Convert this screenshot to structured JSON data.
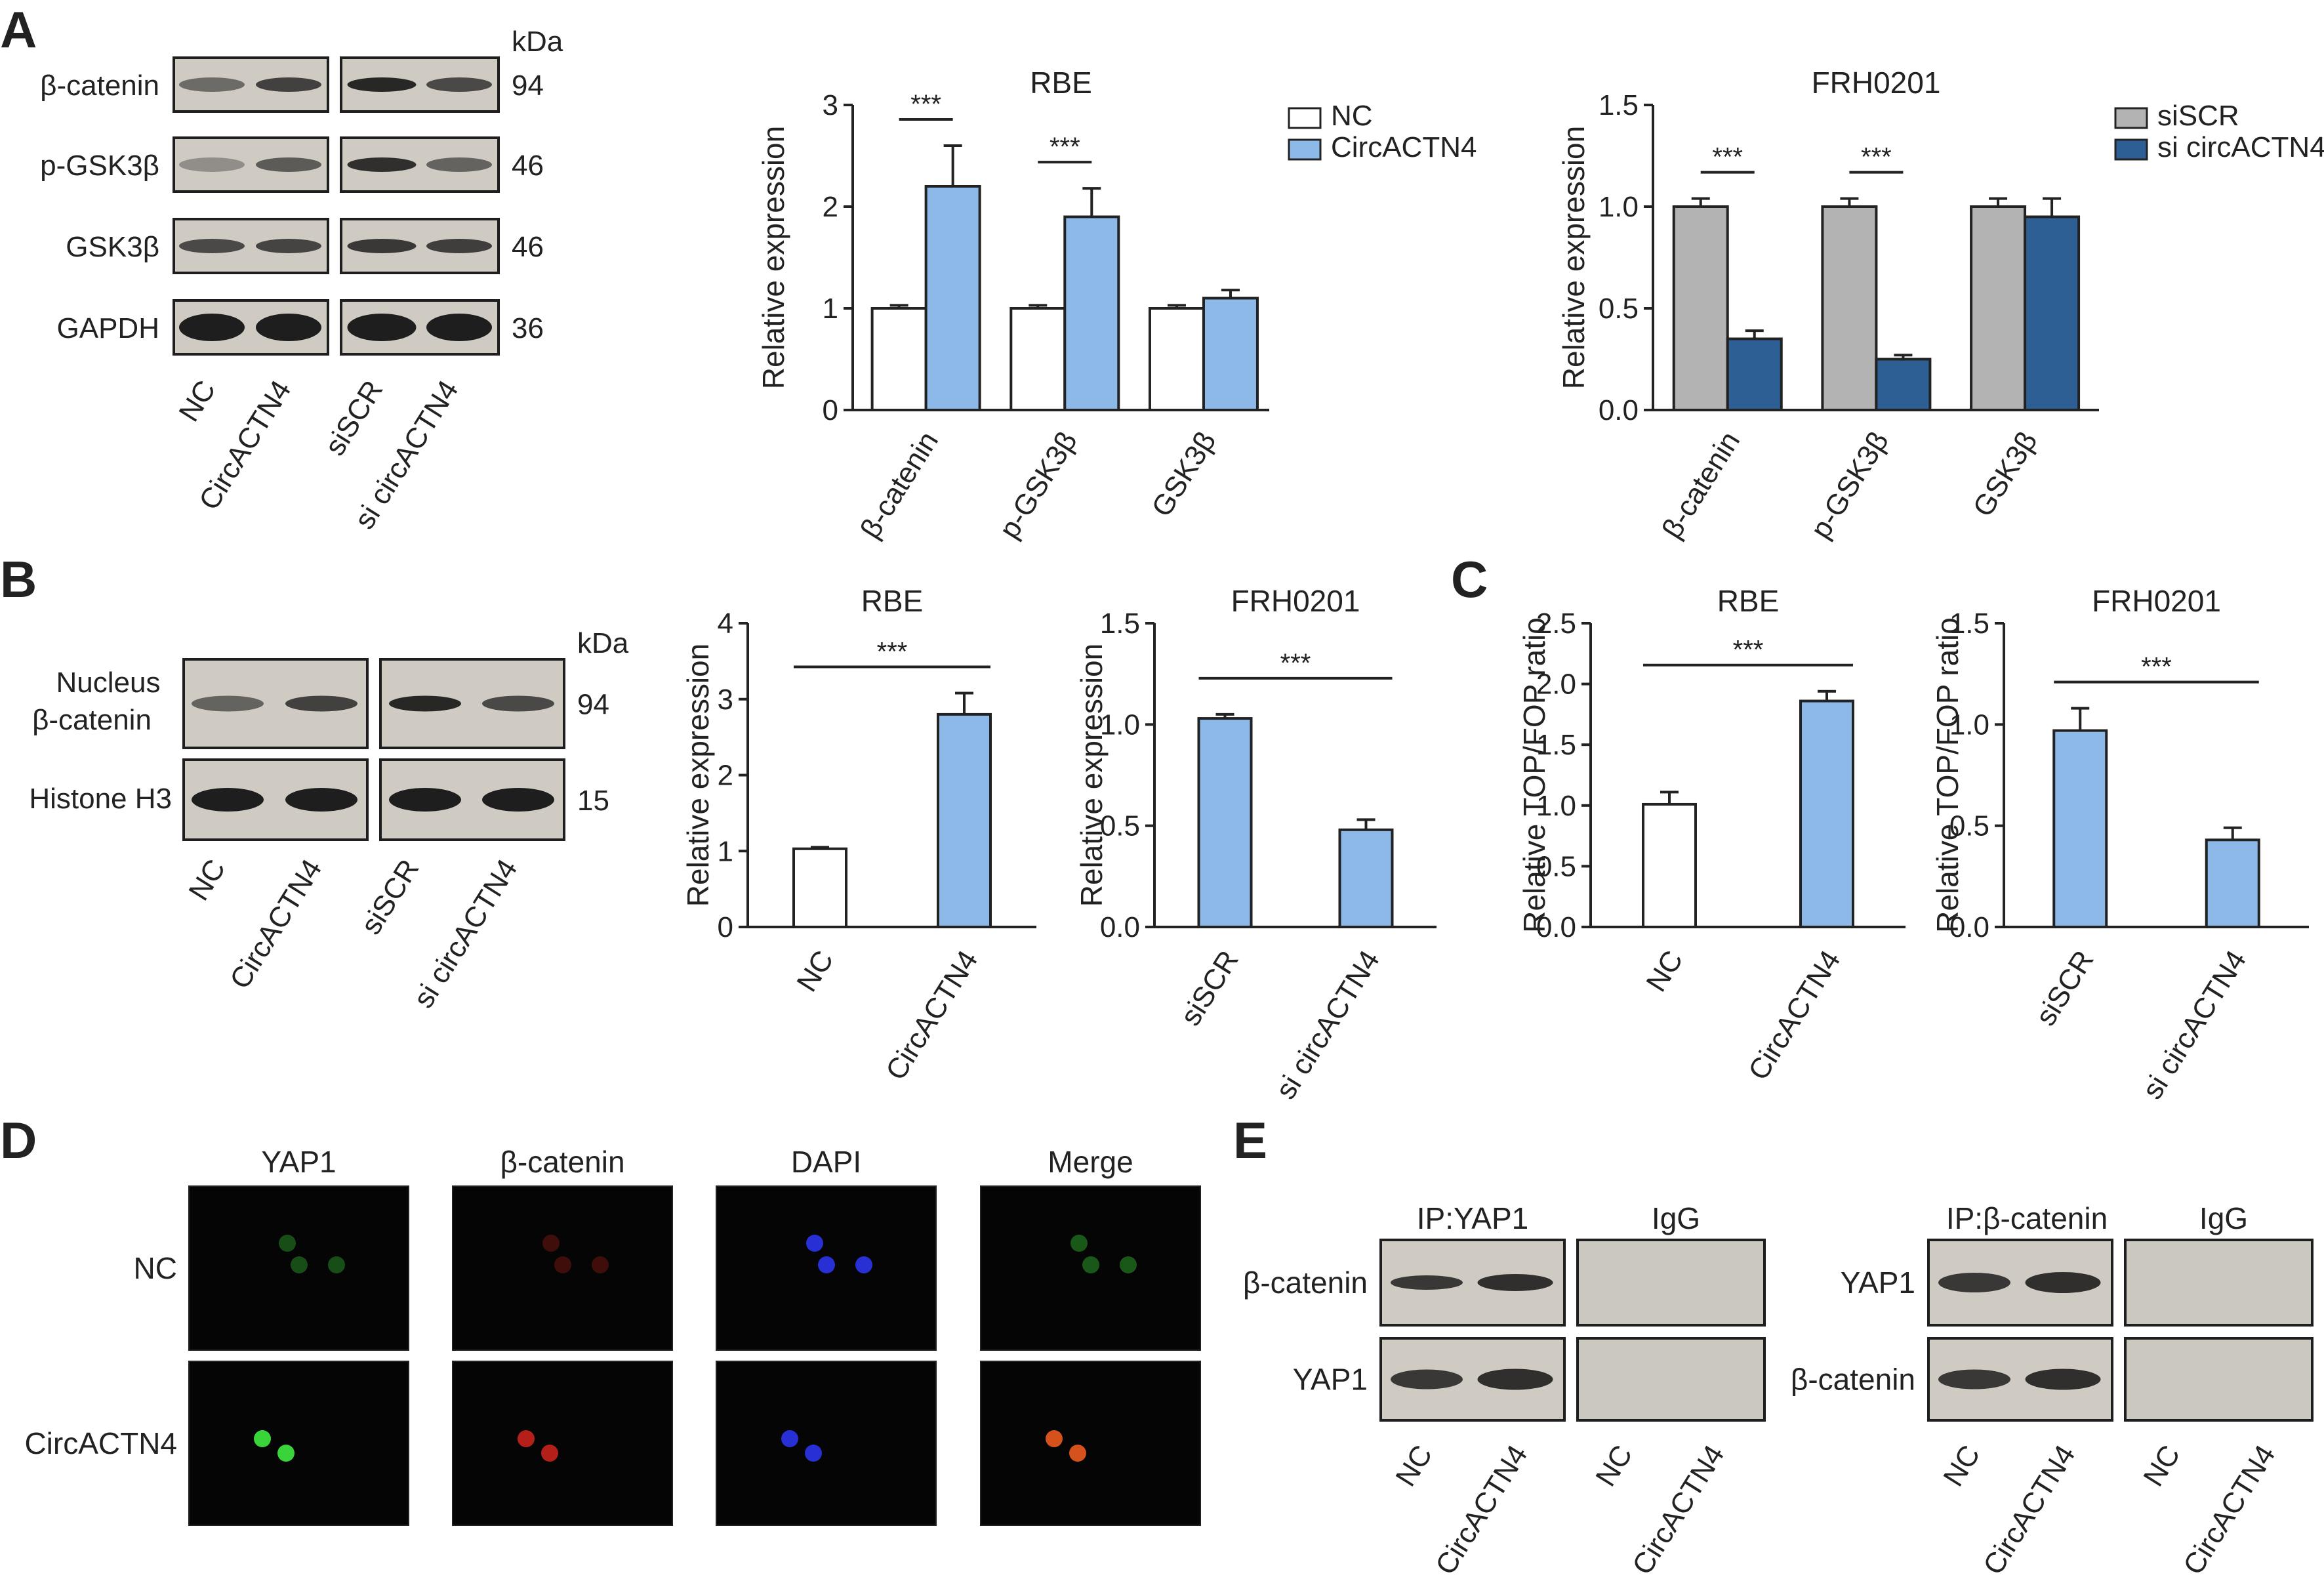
{
  "panel_labels": [
    "A",
    "B",
    "C",
    "D",
    "E"
  ],
  "colors": {
    "nc_fill": "#ffffff",
    "circ_fill": "#8db9e8",
    "siscr_fill": "#b3b3b3",
    "sicirc_fill": "#2d5f94",
    "green_signal": "#39d43a",
    "red_signal": "#c8231c",
    "blue_signal": "#2a33e0",
    "orange_signal": "#e0561e"
  },
  "panelA_blot": {
    "kda": "kDa",
    "rows": [
      {
        "label": "β-catenin",
        "kda": "94"
      },
      {
        "label": "p-GSK3β",
        "kda": "46"
      },
      {
        "label": "GSK3β",
        "kda": "46"
      },
      {
        "label": "GAPDH",
        "kda": "36"
      }
    ],
    "lanes": [
      "NC",
      "CircACTN4",
      "siSCR",
      "si circACTN4"
    ]
  },
  "panelB_blot": {
    "kda": "kDa",
    "rows": [
      {
        "label": "Nucleus",
        "label2": "β-catenin",
        "kda": "94"
      },
      {
        "label": "Histone H3",
        "label2": "",
        "kda": "15"
      }
    ],
    "lanes": [
      "NC",
      "CircACTN4",
      "siSCR",
      "si circACTN4"
    ]
  },
  "panelD": {
    "columns": [
      "YAP1",
      "β-catenin",
      "DAPI",
      "Merge"
    ],
    "rows": [
      "NC",
      "CircACTN4"
    ]
  },
  "panelE": {
    "left": {
      "headers": [
        "IP:YAP1",
        "IgG"
      ],
      "rows": [
        "β-catenin",
        "YAP1"
      ],
      "lanes": [
        "NC",
        "CircACTN4",
        "NC",
        "CircACTN4"
      ]
    },
    "right": {
      "headers": [
        "IP:β-catenin",
        "IgG"
      ],
      "rows": [
        "YAP1",
        "β-catenin"
      ],
      "lanes": [
        "NC",
        "CircACTN4",
        "NC",
        "CircACTN4"
      ]
    }
  },
  "chart_data": [
    {
      "id": "A_RBE",
      "type": "bar",
      "title": "RBE",
      "ylabel": "Relative expression",
      "categories": [
        "β-catenin",
        "p-GSK3β",
        "GSK3β"
      ],
      "series": [
        {
          "name": "NC",
          "values": [
            1.0,
            1.0,
            1.0
          ],
          "errors": [
            0.03,
            0.03,
            0.03
          ],
          "color": "#ffffff"
        },
        {
          "name": "CircACTN4",
          "values": [
            2.2,
            1.9,
            1.1
          ],
          "errors": [
            0.4,
            0.28,
            0.08
          ],
          "color": "#8db9e8"
        }
      ],
      "ylim": [
        0,
        3
      ],
      "yticks": [
        "0",
        "1",
        "2",
        "3"
      ],
      "significance": [
        "***",
        "***",
        ""
      ],
      "legend": "top-right"
    },
    {
      "id": "A_FRH0201",
      "type": "bar",
      "title": "FRH0201",
      "ylabel": "Relative expression",
      "categories": [
        "β-catenin",
        "p-GSK3β",
        "GSK3β"
      ],
      "series": [
        {
          "name": "siSCR",
          "values": [
            1.0,
            1.0,
            1.0
          ],
          "errors": [
            0.04,
            0.04,
            0.04
          ],
          "color": "#b3b3b3"
        },
        {
          "name": "si circACTN4",
          "values": [
            0.35,
            0.25,
            0.95
          ],
          "errors": [
            0.04,
            0.02,
            0.09
          ],
          "color": "#2d5f94"
        }
      ],
      "ylim": [
        0,
        1.5
      ],
      "yticks": [
        "0.0",
        "0.5",
        "1.0",
        "1.5"
      ],
      "significance": [
        "***",
        "***",
        ""
      ],
      "legend": "top-right"
    },
    {
      "id": "B_RBE",
      "type": "bar",
      "title": "RBE",
      "ylabel": "Relative expression",
      "categories": [
        "NC",
        "CircACTN4"
      ],
      "values": [
        1.03,
        2.8
      ],
      "errors": [
        0.02,
        0.28
      ],
      "colors": [
        "#ffffff",
        "#8db9e8"
      ],
      "ylim": [
        0,
        4
      ],
      "yticks": [
        "0",
        "1",
        "2",
        "3",
        "4"
      ],
      "significance": "***"
    },
    {
      "id": "B_FRH0201",
      "type": "bar",
      "title": "FRH0201",
      "ylabel": "Relative expression",
      "categories": [
        "siSCR",
        "si circACTN4"
      ],
      "values": [
        1.03,
        0.48
      ],
      "errors": [
        0.02,
        0.05
      ],
      "colors": [
        "#8db9e8",
        "#8db9e8"
      ],
      "ylim": [
        0,
        1.5
      ],
      "yticks": [
        "0.0",
        "0.5",
        "1.0",
        "1.5"
      ],
      "significance": "***"
    },
    {
      "id": "C_RBE",
      "type": "bar",
      "title": "RBE",
      "ylabel": "Relative TOP/FOP ratio",
      "categories": [
        "NC",
        "CircACTN4"
      ],
      "values": [
        1.01,
        1.86
      ],
      "errors": [
        0.1,
        0.08
      ],
      "colors": [
        "#ffffff",
        "#8db9e8"
      ],
      "ylim": [
        0,
        2.5
      ],
      "yticks": [
        "0.0",
        "0.5",
        "1.0",
        "1.5",
        "2.0",
        "2.5"
      ],
      "significance": "***"
    },
    {
      "id": "C_FRH0201",
      "type": "bar",
      "title": "FRH0201",
      "ylabel": "Relative TOP/FOP ratio",
      "categories": [
        "siSCR",
        "si circACTN4"
      ],
      "values": [
        0.97,
        0.43
      ],
      "errors": [
        0.11,
        0.06
      ],
      "colors": [
        "#8db9e8",
        "#8db9e8"
      ],
      "ylim": [
        0,
        1.5
      ],
      "yticks": [
        "0.0",
        "0.5",
        "1.0",
        "1.5"
      ],
      "significance": "***"
    }
  ]
}
